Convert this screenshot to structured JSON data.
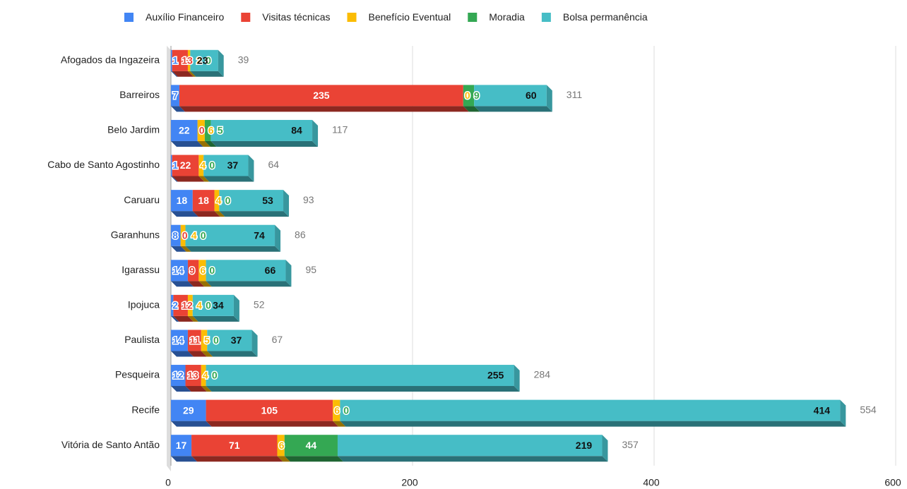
{
  "chart_data": {
    "type": "bar",
    "orientation": "horizontal",
    "stacked": true,
    "categories": [
      "Afogados da Ingazeira",
      "Barreiros",
      "Belo Jardim",
      "Cabo de Santo Agostinho",
      "Caruaru",
      "Garanhuns",
      "Igarassu",
      "Ipojuca",
      "Paulista",
      "Pesqueira",
      "Recife",
      "Vitória de Santo Antão"
    ],
    "series": [
      {
        "name": "Auxílio Financeiro",
        "color": "#4285f4",
        "values": [
          1,
          7,
          22,
          1,
          18,
          8,
          14,
          2,
          14,
          12,
          29,
          17
        ]
      },
      {
        "name": "Visitas técnicas",
        "color": "#ea4335",
        "values": [
          13,
          235,
          0,
          22,
          18,
          0,
          9,
          12,
          11,
          13,
          105,
          71
        ]
      },
      {
        "name": "Benefício Eventual",
        "color": "#fbbc04",
        "values": [
          2,
          0,
          6,
          4,
          4,
          4,
          6,
          4,
          5,
          4,
          6,
          6
        ]
      },
      {
        "name": "Moradia",
        "color": "#34a853",
        "values": [
          0,
          9,
          5,
          0,
          0,
          0,
          0,
          0,
          0,
          0,
          0,
          44
        ]
      },
      {
        "name": "Bolsa permanência",
        "color": "#46bdc6",
        "values": [
          23,
          60,
          84,
          37,
          53,
          74,
          66,
          34,
          37,
          255,
          414,
          219
        ]
      }
    ],
    "totals": [
      39,
      311,
      117,
      64,
      93,
      86,
      95,
      52,
      67,
      284,
      554,
      357
    ],
    "xlim": [
      0,
      600
    ],
    "xticks": [
      0,
      200,
      400,
      600
    ],
    "grid": true,
    "legend": "top"
  }
}
